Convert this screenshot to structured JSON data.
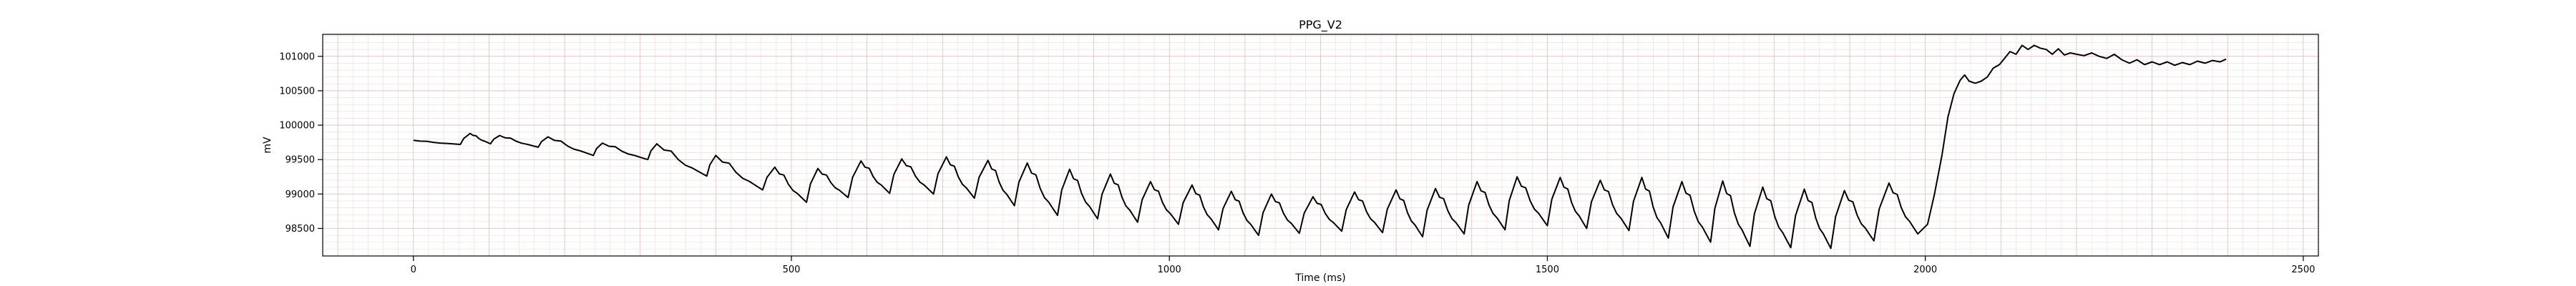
{
  "chart_data": {
    "type": "line",
    "title": "PPG_V2",
    "xlabel": "Time (ms)",
    "ylabel": "mV",
    "xlim": [
      -120,
      2520
    ],
    "ylim": [
      98100,
      101320
    ],
    "xticks": [
      0,
      500,
      1000,
      1500,
      2000,
      2500
    ],
    "yticks": [
      98500,
      99000,
      99500,
      100000,
      100500,
      101000
    ],
    "grid": true,
    "minor_grid": true,
    "grid_color": "#e8b8b8",
    "minor_grid_color": "#f1d9d9",
    "line_color": "#000000",
    "pulse_onsets": [
      0,
      62,
      102,
      165,
      238,
      310,
      388,
      462,
      520,
      575,
      630,
      688,
      742,
      795,
      852,
      905,
      958,
      1012,
      1065,
      1118,
      1172,
      1228,
      1282,
      1335,
      1390,
      1444,
      1500,
      1552,
      1608,
      1660,
      1716,
      1768,
      1822,
      1875,
      1932,
      1990
    ],
    "pulse_peaks": [
      0,
      75,
      114,
      178,
      250,
      322,
      400,
      478,
      535,
      592,
      646,
      705,
      760,
      812,
      868,
      922,
      975,
      1030,
      1082,
      1135,
      1190,
      1245,
      1300,
      1352,
      1407,
      1460,
      1517,
      1570,
      1625,
      1678,
      1732,
      1785,
      1840,
      1893,
      1952,
      1990
    ],
    "y_trough": [
      99780,
      99720,
      99730,
      99680,
      99560,
      99500,
      99260,
      99060,
      98880,
      98950,
      99010,
      99000,
      98940,
      98830,
      98690,
      98640,
      98590,
      98560,
      98480,
      98400,
      98430,
      98460,
      98440,
      98380,
      98420,
      98480,
      98540,
      98500,
      98470,
      98360,
      98300,
      98240,
      98220,
      98210,
      98320,
      98420
    ],
    "y_peak": [
      99780,
      99880,
      99850,
      99830,
      99740,
      99730,
      99560,
      99390,
      99370,
      99480,
      99510,
      99540,
      99490,
      99450,
      99360,
      99290,
      99180,
      99130,
      99040,
      99000,
      98960,
      99030,
      99060,
      99080,
      99180,
      99250,
      99240,
      99200,
      99240,
      99180,
      99190,
      99100,
      99070,
      99050,
      99160,
      99340
    ],
    "baseline_rise": [
      [
        1990,
        98420
      ],
      [
        2003,
        98560
      ],
      [
        2012,
        98990
      ],
      [
        2022,
        99560
      ],
      [
        2030,
        100120
      ],
      [
        2038,
        100460
      ],
      [
        2046,
        100650
      ],
      [
        2052,
        100730
      ],
      [
        2058,
        100640
      ],
      [
        2066,
        100610
      ],
      [
        2074,
        100640
      ],
      [
        2082,
        100700
      ],
      [
        2090,
        100830
      ],
      [
        2098,
        100880
      ],
      [
        2104,
        100960
      ],
      [
        2112,
        101070
      ],
      [
        2120,
        101030
      ],
      [
        2128,
        101160
      ],
      [
        2136,
        101100
      ],
      [
        2144,
        101160
      ],
      [
        2152,
        101120
      ],
      [
        2160,
        101100
      ],
      [
        2168,
        101030
      ],
      [
        2176,
        101110
      ],
      [
        2184,
        101020
      ],
      [
        2192,
        101050
      ],
      [
        2200,
        101030
      ],
      [
        2210,
        101010
      ],
      [
        2220,
        101050
      ],
      [
        2230,
        101000
      ],
      [
        2240,
        100970
      ],
      [
        2250,
        101030
      ],
      [
        2260,
        100950
      ],
      [
        2270,
        100900
      ],
      [
        2280,
        100950
      ],
      [
        2290,
        100880
      ],
      [
        2300,
        100920
      ],
      [
        2310,
        100880
      ],
      [
        2320,
        100920
      ],
      [
        2330,
        100870
      ],
      [
        2340,
        100910
      ],
      [
        2350,
        100880
      ],
      [
        2360,
        100930
      ],
      [
        2370,
        100900
      ],
      [
        2380,
        100940
      ],
      [
        2390,
        100920
      ],
      [
        2398,
        100960
      ]
    ]
  }
}
